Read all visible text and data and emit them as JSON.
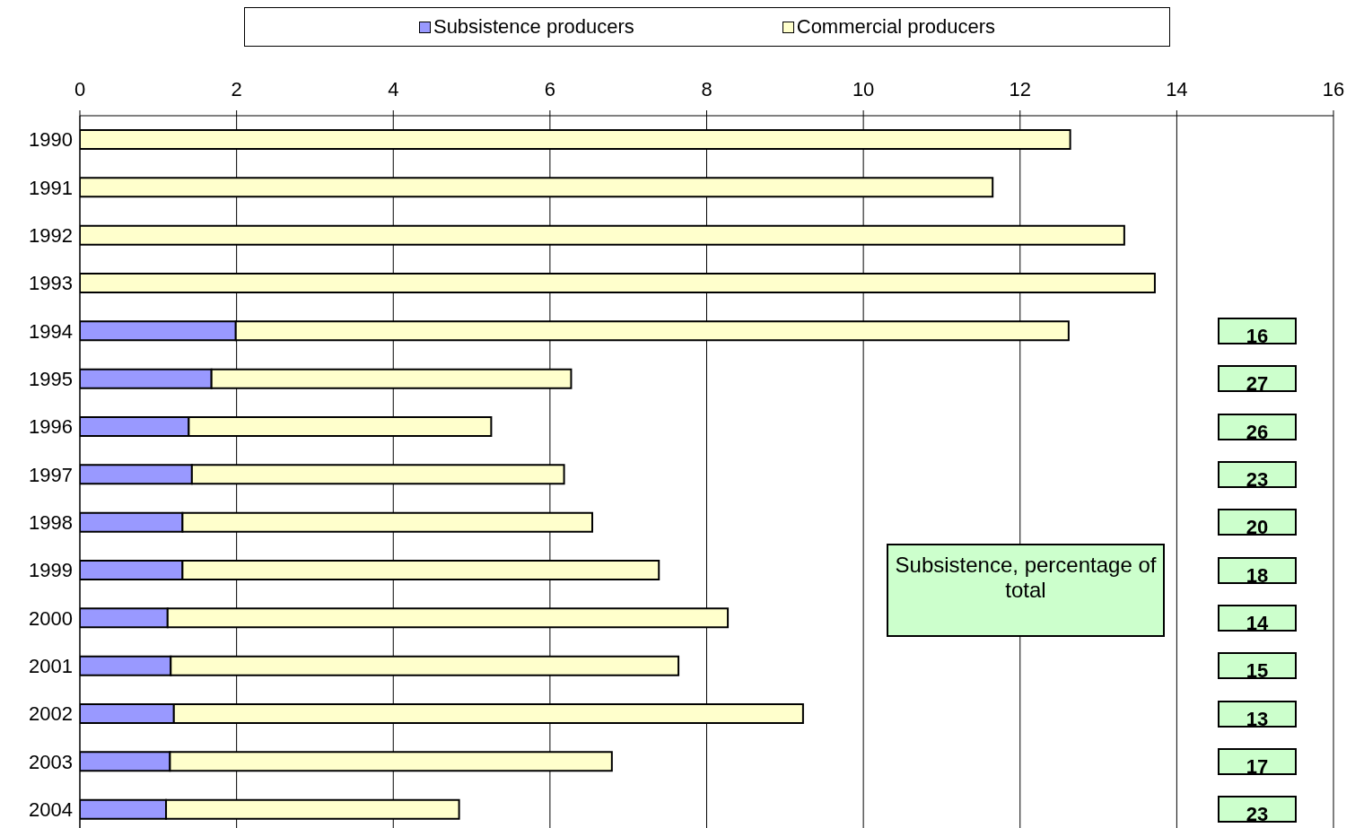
{
  "chart_data": {
    "type": "bar",
    "orientation": "horizontal",
    "stacked": true,
    "categories": [
      "1990",
      "1991",
      "1992",
      "1993",
      "1994",
      "1995",
      "1996",
      "1997",
      "1998",
      "1999",
      "2000",
      "2001",
      "2002",
      "2003",
      "2004"
    ],
    "series": [
      {
        "name": "Subsistence producers",
        "color": "#9999ff",
        "values": [
          null,
          null,
          null,
          null,
          1.99,
          1.68,
          1.39,
          1.43,
          1.31,
          1.31,
          1.12,
          1.16,
          1.2,
          1.15,
          1.1
        ]
      },
      {
        "name": "Commercial producers",
        "color": "#ffffcc",
        "values": [
          12.64,
          11.65,
          13.33,
          13.72,
          10.63,
          4.59,
          3.86,
          4.75,
          5.23,
          6.08,
          7.15,
          6.48,
          8.03,
          5.64,
          3.74
        ]
      }
    ],
    "xlim": [
      0,
      16
    ],
    "xticks": [
      0,
      2,
      4,
      6,
      8,
      10,
      12,
      14,
      16
    ],
    "grid": "x",
    "legend": "top",
    "annotations": [
      "Subsistence, percentage of total",
      "16",
      "27",
      "26",
      "23",
      "20",
      "18",
      "14",
      "15",
      "13",
      "17",
      "23"
    ]
  }
}
